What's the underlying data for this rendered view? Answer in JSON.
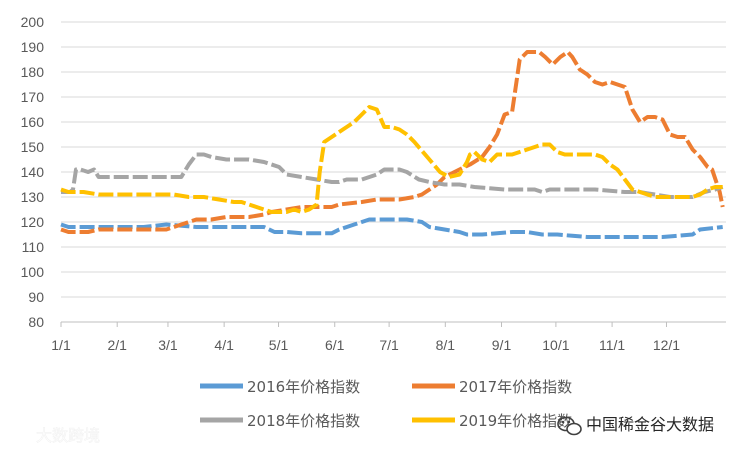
{
  "chart_data": {
    "type": "line",
    "x_ticks": [
      "1/1",
      "2/1",
      "3/1",
      "4/1",
      "5/1",
      "6/1",
      "7/1",
      "8/1",
      "9/1",
      "10/1",
      "11/1",
      "12/1"
    ],
    "ylim": [
      80,
      200
    ],
    "y_ticks": [
      "80",
      "90",
      "100",
      "110",
      "120",
      "130",
      "140",
      "150",
      "160",
      "170",
      "180",
      "190",
      "200"
    ],
    "grid": true,
    "legend_position": "bottom",
    "series": [
      {
        "name": "2016年价格指数",
        "color": "#5B9BD5",
        "points": [
          [
            0,
            119
          ],
          [
            5,
            118
          ],
          [
            10,
            118
          ],
          [
            20,
            118
          ],
          [
            40,
            118
          ],
          [
            55,
            118
          ],
          [
            70,
            119
          ],
          [
            90,
            118
          ],
          [
            120,
            118
          ],
          [
            135,
            118
          ],
          [
            142,
            116
          ],
          [
            150,
            116
          ],
          [
            160,
            115.5
          ],
          [
            170,
            115.5
          ],
          [
            180,
            115.5
          ],
          [
            185,
            117
          ],
          [
            195,
            119
          ],
          [
            205,
            121
          ],
          [
            220,
            121
          ],
          [
            230,
            121
          ],
          [
            240,
            120
          ],
          [
            245,
            118
          ],
          [
            255,
            117
          ],
          [
            265,
            116
          ],
          [
            270,
            115
          ],
          [
            280,
            115
          ],
          [
            290,
            115.5
          ],
          [
            300,
            116
          ],
          [
            310,
            116
          ],
          [
            320,
            115
          ],
          [
            330,
            115
          ],
          [
            340,
            114.5
          ],
          [
            350,
            114
          ],
          [
            360,
            114
          ],
          [
            370,
            114
          ],
          [
            380,
            114
          ],
          [
            390,
            114
          ],
          [
            400,
            114
          ],
          [
            410,
            114.5
          ],
          [
            420,
            115
          ],
          [
            425,
            117
          ],
          [
            440,
            118
          ]
        ]
      },
      {
        "name": "2017年价格指数",
        "color": "#ED7D31",
        "points": [
          [
            0,
            117
          ],
          [
            5,
            116
          ],
          [
            10,
            116
          ],
          [
            18,
            116
          ],
          [
            25,
            117
          ],
          [
            30,
            117
          ],
          [
            40,
            117
          ],
          [
            55,
            117
          ],
          [
            70,
            117
          ],
          [
            75,
            118
          ],
          [
            85,
            120
          ],
          [
            90,
            121
          ],
          [
            100,
            121
          ],
          [
            110,
            122
          ],
          [
            125,
            122
          ],
          [
            135,
            123
          ],
          [
            140,
            124
          ],
          [
            150,
            125
          ],
          [
            160,
            126
          ],
          [
            170,
            126
          ],
          [
            180,
            126
          ],
          [
            185,
            127
          ],
          [
            200,
            128
          ],
          [
            210,
            129
          ],
          [
            225,
            129
          ],
          [
            235,
            130
          ],
          [
            240,
            131
          ],
          [
            250,
            135
          ],
          [
            255,
            138
          ],
          [
            265,
            141
          ],
          [
            272,
            143
          ],
          [
            280,
            146
          ],
          [
            285,
            150
          ],
          [
            290,
            155
          ],
          [
            295,
            163
          ],
          [
            300,
            164
          ],
          [
            305,
            185
          ],
          [
            310,
            188
          ],
          [
            318,
            188
          ],
          [
            322,
            186
          ],
          [
            327,
            183
          ],
          [
            332,
            186
          ],
          [
            337,
            188
          ],
          [
            340,
            186
          ],
          [
            345,
            181
          ],
          [
            350,
            179
          ],
          [
            355,
            176
          ],
          [
            360,
            175
          ],
          [
            365,
            176
          ],
          [
            375,
            174
          ],
          [
            380,
            165
          ],
          [
            385,
            160
          ],
          [
            390,
            162
          ],
          [
            395,
            162
          ],
          [
            400,
            161
          ],
          [
            405,
            155
          ],
          [
            410,
            154
          ],
          [
            415,
            154
          ],
          [
            420,
            149
          ],
          [
            425,
            146
          ],
          [
            430,
            142
          ],
          [
            433,
            141
          ],
          [
            438,
            132
          ],
          [
            440,
            126
          ]
        ]
      },
      {
        "name": "2018年价格指数",
        "color": "#A5A5A5",
        "points": [
          [
            0,
            132
          ],
          [
            6,
            132
          ],
          [
            8,
            133
          ],
          [
            10,
            141
          ],
          [
            13,
            141
          ],
          [
            18,
            140
          ],
          [
            22,
            141
          ],
          [
            25,
            138
          ],
          [
            35,
            138
          ],
          [
            45,
            138
          ],
          [
            55,
            138
          ],
          [
            65,
            138
          ],
          [
            70,
            138
          ],
          [
            75,
            138
          ],
          [
            80,
            138
          ],
          [
            85,
            143
          ],
          [
            90,
            147
          ],
          [
            95,
            147
          ],
          [
            100,
            146
          ],
          [
            110,
            145
          ],
          [
            125,
            145
          ],
          [
            135,
            144
          ],
          [
            145,
            142
          ],
          [
            150,
            139
          ],
          [
            160,
            138
          ],
          [
            170,
            137
          ],
          [
            180,
            136
          ],
          [
            185,
            136
          ],
          [
            190,
            137
          ],
          [
            200,
            137
          ],
          [
            210,
            139
          ],
          [
            215,
            141
          ],
          [
            225,
            141
          ],
          [
            230,
            140
          ],
          [
            238,
            137
          ],
          [
            245,
            136
          ],
          [
            255,
            135
          ],
          [
            265,
            135
          ],
          [
            275,
            134
          ],
          [
            285,
            133.5
          ],
          [
            295,
            133
          ],
          [
            305,
            133
          ],
          [
            315,
            133
          ],
          [
            320,
            132
          ],
          [
            325,
            133
          ],
          [
            335,
            133
          ],
          [
            345,
            133
          ],
          [
            355,
            133
          ],
          [
            365,
            132.5
          ],
          [
            375,
            132
          ],
          [
            385,
            132
          ],
          [
            390,
            131.5
          ],
          [
            395,
            131
          ],
          [
            405,
            130
          ],
          [
            410,
            130
          ],
          [
            415,
            130
          ],
          [
            420,
            130
          ],
          [
            428,
            132
          ],
          [
            435,
            133
          ],
          [
            440,
            134
          ]
        ]
      },
      {
        "name": "2019年价格指数",
        "color": "#FFC000",
        "points": [
          [
            0,
            133
          ],
          [
            5,
            132
          ],
          [
            15,
            132
          ],
          [
            25,
            131
          ],
          [
            35,
            131
          ],
          [
            45,
            131
          ],
          [
            55,
            131
          ],
          [
            65,
            131
          ],
          [
            75,
            131
          ],
          [
            85,
            130
          ],
          [
            95,
            130
          ],
          [
            105,
            129
          ],
          [
            115,
            128
          ],
          [
            120,
            128
          ],
          [
            125,
            127
          ],
          [
            130,
            126
          ],
          [
            140,
            124
          ],
          [
            150,
            124
          ],
          [
            155,
            125
          ],
          [
            160,
            124
          ],
          [
            165,
            125
          ],
          [
            170,
            127
          ],
          [
            172,
            140
          ],
          [
            175,
            152
          ],
          [
            180,
            154
          ],
          [
            185,
            156
          ],
          [
            190,
            158
          ],
          [
            195,
            160
          ],
          [
            200,
            163
          ],
          [
            205,
            166
          ],
          [
            210,
            165
          ],
          [
            215,
            158
          ],
          [
            220,
            158
          ],
          [
            225,
            157
          ],
          [
            230,
            155
          ],
          [
            235,
            152
          ],
          [
            245,
            145
          ],
          [
            252,
            140
          ],
          [
            258,
            138
          ],
          [
            265,
            139
          ],
          [
            270,
            144
          ],
          [
            272,
            147
          ],
          [
            275,
            148
          ],
          [
            280,
            145
          ],
          [
            285,
            144
          ],
          [
            290,
            147
          ],
          [
            300,
            147
          ],
          [
            305,
            148
          ],
          [
            310,
            149
          ],
          [
            315,
            150
          ],
          [
            320,
            151
          ],
          [
            325,
            151
          ],
          [
            330,
            148
          ],
          [
            335,
            147
          ],
          [
            340,
            147
          ],
          [
            345,
            147
          ],
          [
            350,
            147
          ],
          [
            355,
            147
          ],
          [
            360,
            146
          ],
          [
            365,
            143
          ],
          [
            370,
            141
          ],
          [
            375,
            137
          ],
          [
            380,
            133
          ],
          [
            385,
            132
          ],
          [
            390,
            131
          ],
          [
            395,
            130
          ],
          [
            400,
            130
          ],
          [
            405,
            130
          ],
          [
            410,
            130
          ],
          [
            415,
            130
          ],
          [
            420,
            130
          ],
          [
            425,
            131
          ],
          [
            430,
            133
          ],
          [
            435,
            134
          ],
          [
            440,
            134
          ]
        ]
      }
    ]
  },
  "watermark_left": "大数跨境",
  "watermark_right": "中国稀金谷大数据"
}
